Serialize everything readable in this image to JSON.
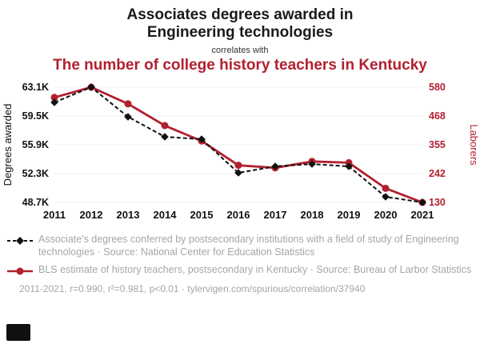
{
  "header": {
    "title_line1": "Associates degrees awarded in",
    "title_line2": "Engineering technologies",
    "connector": "correlates with",
    "subtitle": "The number of college history teachers in Kentucky"
  },
  "colors": {
    "accent_red": "#b2202f",
    "series_black": "#111111",
    "gray_text": "#a6a6a6",
    "grid": "#f0f0f0"
  },
  "chart_data": {
    "type": "line",
    "x": [
      "2011",
      "2012",
      "2013",
      "2014",
      "2015",
      "2016",
      "2017",
      "2018",
      "2019",
      "2020",
      "2021"
    ],
    "series": [
      {
        "name": "Associate's degrees conferred (Engineering technologies)",
        "axis": "left",
        "color": "#111111",
        "style": "dashed-diamond",
        "values": [
          61.2,
          63.1,
          59.4,
          56.9,
          56.6,
          52.4,
          53.2,
          53.5,
          53.2,
          49.4,
          48.7
        ]
      },
      {
        "name": "BLS estimate of history teachers, postsecondary in Kentucky",
        "axis": "right",
        "color": "#b2202f",
        "style": "solid-circle",
        "values": [
          540,
          580,
          515,
          430,
          370,
          275,
          265,
          290,
          285,
          185,
          130
        ]
      }
    ],
    "left_axis": {
      "label": "Degrees awarded",
      "ticks": [
        "63.1K",
        "59.5K",
        "55.9K",
        "52.3K",
        "48.7K"
      ],
      "min": 48.7,
      "max": 63.1
    },
    "right_axis": {
      "label": "Laborers",
      "ticks": [
        "580",
        "468",
        "355",
        "242",
        "130"
      ],
      "min": 130,
      "max": 580
    },
    "grid": "horizontal-faint",
    "legend_position": "below"
  },
  "legend": {
    "item1": "Associate's degrees conferred by postsecondary institutions with a field of study of Engineering technologies · Source: National Center for Education Statistics",
    "item2": "BLS estimate of history teachers, postsecondary in Kentucky · Source: Bureau of Larbor Statistics"
  },
  "footer": {
    "stats": "2011-2021, r=0.990, r²=0.981, p<0.01 · tylervigen.com/spurious/correlation/37940"
  }
}
